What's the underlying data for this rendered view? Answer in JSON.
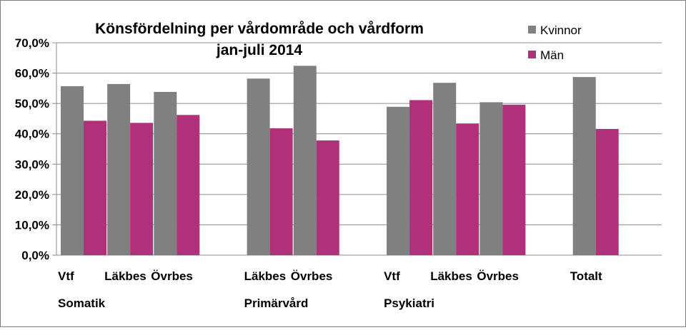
{
  "chart_data": {
    "type": "bar",
    "title": "Könsfördelning per vårdområde och vårdform",
    "subtitle": "jan-juli 2014",
    "categories": [
      "Vtf",
      "Läkbes",
      "Övrbes",
      "Läkbes",
      "Övrbes",
      "Vtf",
      "Läkbes",
      "Övrbes",
      "Totalt"
    ],
    "groups": [
      {
        "label": "Somatik",
        "categories": [
          "Vtf",
          "Läkbes",
          "Övrbes"
        ]
      },
      {
        "label": "Primärvård",
        "categories": [
          "Läkbes",
          "Övrbes"
        ]
      },
      {
        "label": "Psykiatri",
        "categories": [
          "Vtf",
          "Läkbes",
          "Övrbes"
        ]
      },
      {
        "label": "",
        "categories": [
          "Totalt"
        ]
      }
    ],
    "series": [
      {
        "name": "Kvinnor",
        "color": "#808080",
        "values": [
          55.7,
          56.4,
          53.8,
          58.2,
          62.4,
          48.9,
          56.8,
          50.4,
          58.7
        ]
      },
      {
        "name": "Män",
        "color": "#b0307a",
        "values": [
          44.3,
          43.6,
          46.2,
          41.8,
          37.8,
          51.1,
          43.4,
          49.6,
          41.6
        ]
      }
    ],
    "ylim": [
      0,
      70
    ],
    "yticks": [
      "0,0%",
      "10,0%",
      "20,0%",
      "30,0%",
      "40,0%",
      "50,0%",
      "60,0%",
      "70,0%"
    ],
    "grid": true,
    "legend": "top-right"
  }
}
